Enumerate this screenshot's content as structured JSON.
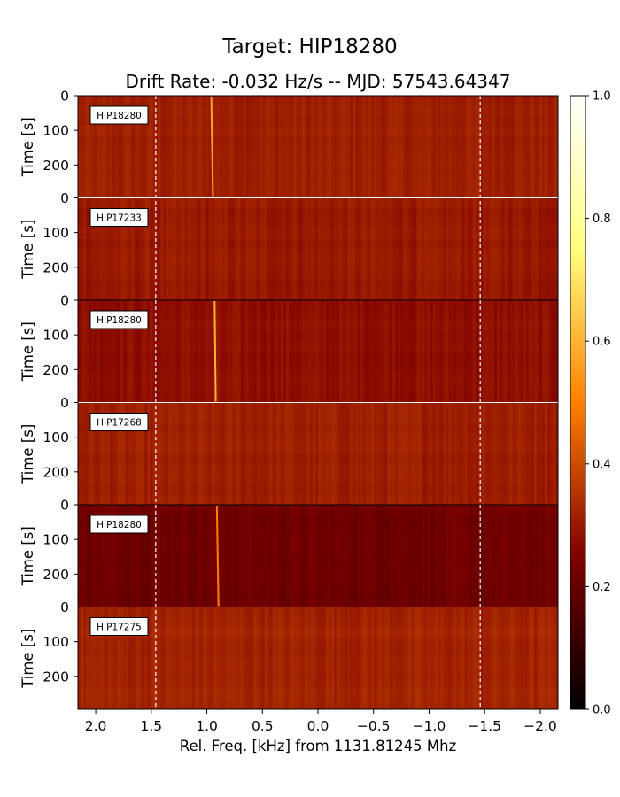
{
  "chart_data": {
    "type": "heatmap",
    "title": "Target: HIP18280",
    "subtitle": "Drift Rate: -0.032 Hz/s -- MJD: 57543.64347",
    "xlabel": "Rel. Freq. [kHz] from 1131.81245 Mhz",
    "ylabel": "Time [s]",
    "xlim": [
      2.16,
      -2.16
    ],
    "x_ticks": [
      2.0,
      1.5,
      1.0,
      0.5,
      0.0,
      -0.5,
      -1.0,
      -1.5,
      -2.0
    ],
    "x_tick_labels": [
      "2.0",
      "1.5",
      "1.0",
      "0.5",
      "0.0",
      "−0.5",
      "−1.0",
      "−1.5",
      "−2.0"
    ],
    "y_ticks": [
      0,
      100,
      200
    ],
    "y_tick_labels": [
      "0",
      "100",
      "200"
    ],
    "ylim_per_panel": [
      0,
      295
    ],
    "dashed_lines_x": [
      1.46,
      -1.46
    ],
    "colormap": "afmhot",
    "colorbar": {
      "range": [
        0.0,
        1.0
      ],
      "ticks": [
        0.0,
        0.2,
        0.4,
        0.6,
        0.8,
        1.0
      ],
      "tick_labels": [
        "0.0",
        "0.2",
        "0.4",
        "0.6",
        "0.8",
        "1.0"
      ]
    },
    "panels": [
      {
        "label": "HIP18280",
        "mean_level": 0.31,
        "signal": {
          "freq_start": 0.96,
          "freq_end": 0.945,
          "strength": 0.42
        },
        "base_color": "#8b2605"
      },
      {
        "label": "HIP17233",
        "mean_level": 0.3,
        "signal": null,
        "base_color": "#862304"
      },
      {
        "label": "HIP18280",
        "mean_level": 0.28,
        "signal": {
          "freq_start": 0.93,
          "freq_end": 0.92,
          "strength": 0.45
        },
        "base_color": "#7e1d03"
      },
      {
        "label": "HIP17268",
        "mean_level": 0.31,
        "signal": null,
        "base_color": "#8a2505"
      },
      {
        "label": "HIP18280",
        "mean_level": 0.22,
        "signal": {
          "freq_start": 0.91,
          "freq_end": 0.895,
          "strength": 0.35
        },
        "base_color": "#4f0800"
      },
      {
        "label": "HIP17275",
        "mean_level": 0.32,
        "signal": null,
        "base_color": "#912a06"
      }
    ]
  }
}
